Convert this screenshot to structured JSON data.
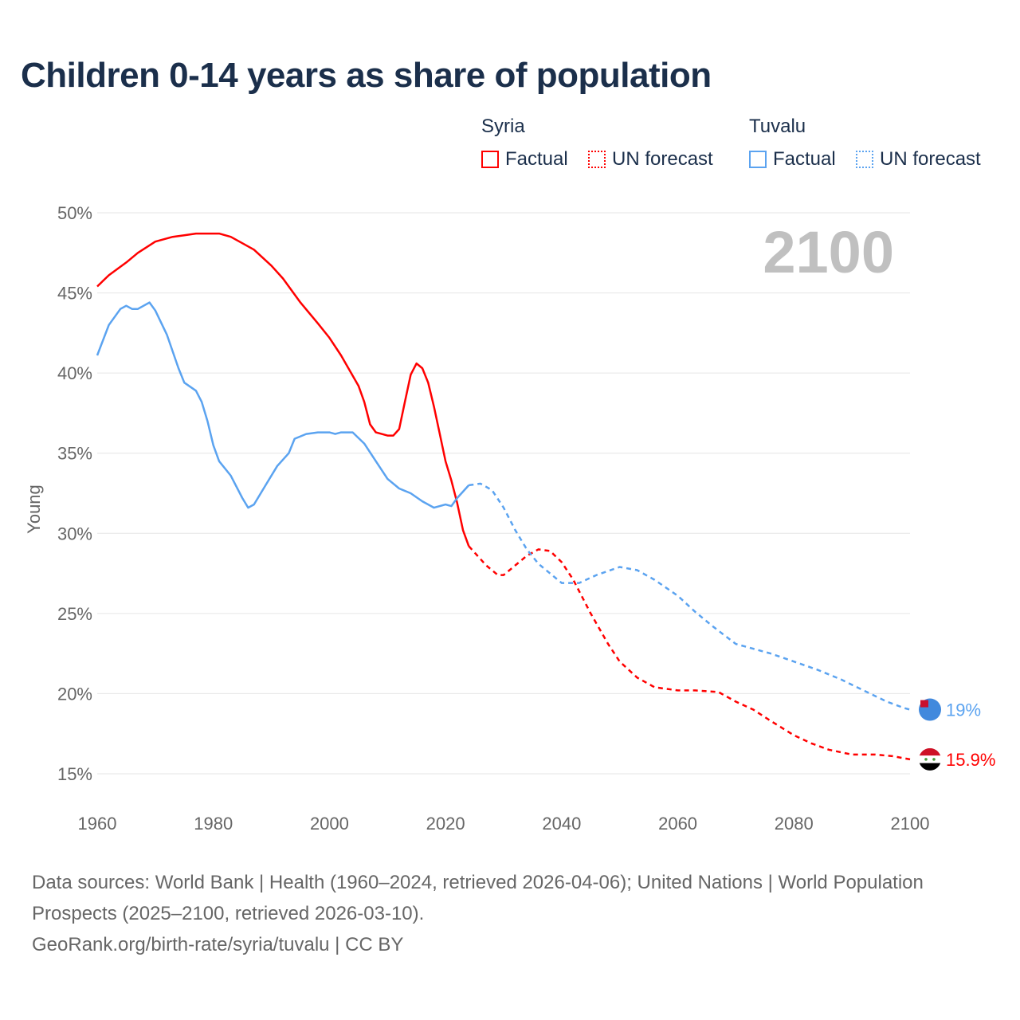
{
  "chart_data": {
    "type": "line",
    "title": "Children 0-14 years as share of population",
    "ylabel": "Young",
    "xlabel": "",
    "xlim": [
      1960,
      2100
    ],
    "ylim": [
      15,
      50
    ],
    "x_ticks": [
      "1960",
      "1980",
      "2000",
      "2020",
      "2040",
      "2060",
      "2080",
      "2100"
    ],
    "y_ticks": [
      "15%",
      "20%",
      "25%",
      "30%",
      "35%",
      "40%",
      "45%",
      "50%"
    ],
    "grid": true,
    "year_overlay": "2100",
    "legend": {
      "placement": "top-right",
      "groups": [
        {
          "country": "Syria",
          "factual": "Factual",
          "forecast": "UN forecast",
          "color": "#ff0000"
        },
        {
          "country": "Tuvalu",
          "factual": "Factual",
          "forecast": "UN forecast",
          "color": "#5ba3f0"
        }
      ]
    },
    "series": [
      {
        "name": "Syria",
        "color": "#ff0000",
        "end_label": "15.9%",
        "factual": {
          "x": [
            1960,
            1962,
            1965,
            1967,
            1970,
            1973,
            1975,
            1977,
            1981,
            1983,
            1985,
            1987,
            1990,
            1992,
            1995,
            1998,
            2000,
            2002,
            2005,
            2006,
            2007,
            2008,
            2010,
            2011,
            2012,
            2013,
            2014,
            2015,
            2016,
            2017,
            2018,
            2019,
            2020,
            2021,
            2022,
            2023,
            2024
          ],
          "y": [
            45.4,
            46.1,
            46.9,
            47.5,
            48.2,
            48.5,
            48.6,
            48.7,
            48.7,
            48.5,
            48.1,
            47.7,
            46.7,
            45.9,
            44.4,
            43.1,
            42.2,
            41.1,
            39.2,
            38.2,
            36.8,
            36.3,
            36.1,
            36.1,
            36.5,
            38.2,
            39.9,
            40.6,
            40.3,
            39.4,
            37.9,
            36.2,
            34.5,
            33.3,
            31.9,
            30.2,
            29.2
          ]
        },
        "forecast": {
          "x": [
            2024,
            2025,
            2027,
            2029,
            2030,
            2032,
            2034,
            2036,
            2038,
            2040,
            2042,
            2045,
            2048,
            2050,
            2053,
            2056,
            2060,
            2063,
            2067,
            2070,
            2073,
            2076,
            2080,
            2083,
            2086,
            2090,
            2094,
            2097,
            2100
          ],
          "y": [
            29.2,
            28.8,
            28.0,
            27.4,
            27.4,
            28.0,
            28.6,
            29.0,
            28.9,
            28.2,
            27.1,
            25.0,
            23.1,
            22.0,
            21.0,
            20.4,
            20.2,
            20.2,
            20.1,
            19.5,
            19.0,
            18.3,
            17.4,
            16.9,
            16.5,
            16.2,
            16.2,
            16.1,
            15.9
          ]
        }
      },
      {
        "name": "Tuvalu",
        "color": "#5ba3f0",
        "end_label": "19%",
        "factual": {
          "x": [
            1960,
            1962,
            1964,
            1965,
            1966,
            1967,
            1969,
            1970,
            1972,
            1974,
            1975,
            1977,
            1978,
            1979,
            1980,
            1981,
            1983,
            1985,
            1986,
            1987,
            1989,
            1991,
            1993,
            1994,
            1996,
            1998,
            2000,
            2001,
            2002,
            2004,
            2006,
            2008,
            2010,
            2012,
            2014,
            2016,
            2018,
            2020,
            2021,
            2022,
            2024
          ],
          "y": [
            41.1,
            43.0,
            44.0,
            44.2,
            44.0,
            44.0,
            44.4,
            43.9,
            42.4,
            40.3,
            39.4,
            38.9,
            38.2,
            37.0,
            35.5,
            34.5,
            33.6,
            32.2,
            31.6,
            31.8,
            33.0,
            34.2,
            35.0,
            35.9,
            36.2,
            36.3,
            36.3,
            36.2,
            36.3,
            36.3,
            35.6,
            34.5,
            33.4,
            32.8,
            32.5,
            32.0,
            31.6,
            31.8,
            31.7,
            32.2,
            33.0
          ]
        },
        "forecast": {
          "x": [
            2024,
            2026,
            2028,
            2030,
            2032,
            2034,
            2036,
            2038,
            2040,
            2043,
            2046,
            2050,
            2053,
            2056,
            2060,
            2063,
            2066,
            2070,
            2073,
            2076,
            2080,
            2084,
            2088,
            2092,
            2096,
            2099,
            2100
          ],
          "y": [
            33.0,
            33.1,
            32.7,
            31.6,
            30.2,
            29.0,
            28.1,
            27.5,
            26.9,
            26.9,
            27.4,
            27.9,
            27.7,
            27.1,
            26.1,
            25.1,
            24.2,
            23.1,
            22.8,
            22.5,
            22.0,
            21.5,
            20.9,
            20.2,
            19.5,
            19.1,
            19.0
          ]
        }
      }
    ]
  },
  "footer": {
    "sources": "Data sources: World Bank | Health (1960–2024, retrieved 2026-04-06); United Nations | World Population Prospects (2025–2100, retrieved 2026-03-10).",
    "credit": "GeoRank.org/birth-rate/syria/tuvalu | CC BY"
  }
}
